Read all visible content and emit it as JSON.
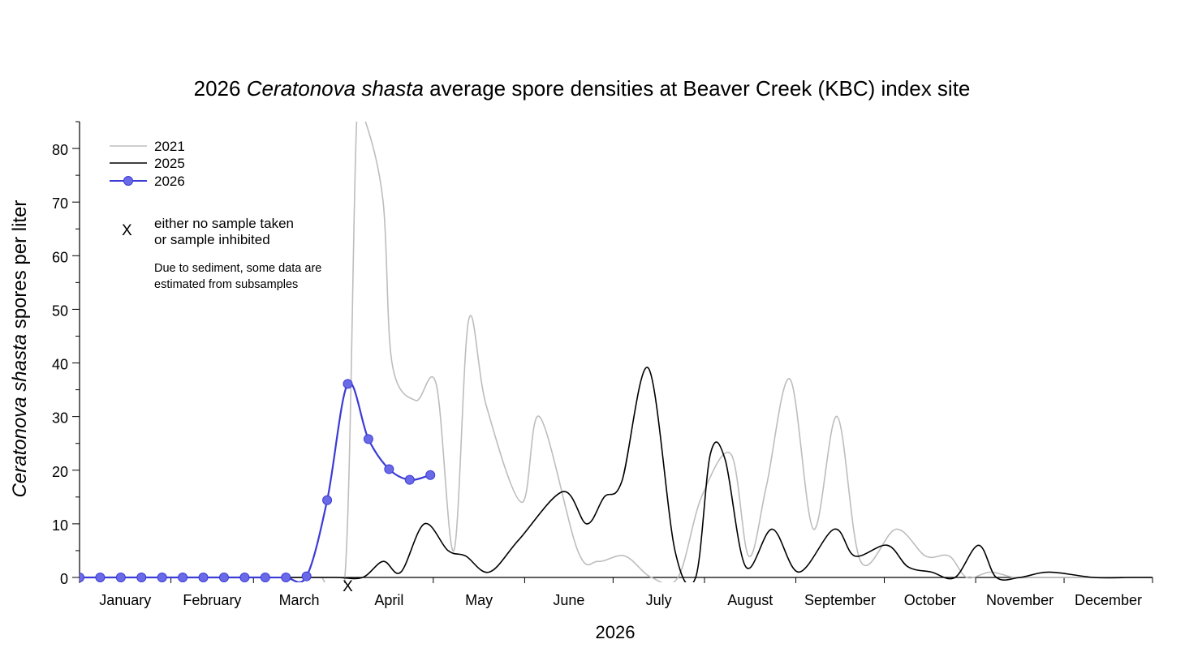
{
  "chart_data": {
    "type": "line",
    "title": {
      "prefix": "2026 ",
      "italic": "Ceratonova shasta",
      "suffix": " average spore densities at Beaver Creek (KBC) index site"
    },
    "ylabel": {
      "italic": "Ceratonova shasta",
      "suffix": " spores per liter"
    },
    "xlabel": "2026",
    "ylim": [
      0,
      85
    ],
    "yticks": [
      0,
      10,
      20,
      30,
      40,
      50,
      60,
      70,
      80
    ],
    "months": [
      "January",
      "February",
      "March",
      "April",
      "May",
      "June",
      "July",
      "August",
      "September",
      "October",
      "November",
      "December"
    ],
    "grid": false,
    "legend_placement": "top-left",
    "series": [
      {
        "name": "2021",
        "color": "#bdbdbd",
        "markers": false,
        "x": [
          1,
          15,
          29,
          46,
          60,
          74,
          78,
          83,
          91,
          95,
          98,
          104,
          107,
          115,
          122,
          128,
          133,
          139,
          151,
          157,
          170,
          177,
          186,
          195,
          204,
          212,
          222,
          228,
          234,
          242,
          250,
          258,
          266,
          278,
          288,
          296,
          302,
          310,
          318,
          326,
          340,
          354,
          365
        ],
        "y": [
          0,
          0,
          0,
          0,
          0,
          0,
          0,
          0,
          0,
          85,
          85,
          70,
          40,
          33,
          36,
          5,
          48,
          32,
          14,
          30,
          5,
          3,
          4,
          0,
          0,
          15,
          23,
          4,
          17,
          37,
          9,
          30,
          3,
          9,
          4,
          4,
          0,
          1,
          0,
          0,
          0,
          0,
          0
        ]
      },
      {
        "name": "2025",
        "color": "#000000",
        "markers": false,
        "x": [
          1,
          15,
          29,
          46,
          60,
          74,
          88,
          97,
          104,
          110,
          118,
          126,
          132,
          140,
          150,
          165,
          173,
          179,
          185,
          194,
          203,
          210,
          215,
          220,
          227,
          236,
          245,
          257,
          264,
          275,
          282,
          290,
          298,
          306,
          312,
          320,
          330,
          345,
          358,
          365
        ],
        "y": [
          0,
          0,
          0,
          0,
          0,
          0,
          0,
          0,
          3,
          1,
          10,
          5,
          4,
          1,
          7,
          16,
          10,
          15,
          18,
          39,
          5,
          0,
          23,
          22,
          2,
          9,
          1,
          9,
          4,
          6,
          2,
          1,
          0,
          6,
          0,
          0,
          1,
          0,
          0,
          0
        ]
      },
      {
        "name": "2026",
        "color": "#3b3bd6",
        "markers": true,
        "x": [
          1,
          8,
          15,
          22,
          29,
          36,
          43,
          50,
          57,
          64,
          71,
          78,
          85,
          92,
          99,
          106,
          113,
          120
        ],
        "y": [
          0,
          0,
          0,
          0,
          0,
          0,
          0,
          0,
          0,
          0,
          0,
          0.2,
          14.4,
          36.1,
          25.8,
          20.2,
          18.2,
          19.1
        ]
      }
    ],
    "no_sample_markers": {
      "symbol": "X",
      "x": [
        92
      ]
    },
    "legend": {
      "entries": [
        "2021",
        "2025",
        "2026"
      ],
      "x_marker_symbol": "X",
      "x_marker_text_line1": "either no sample taken",
      "x_marker_text_line2": "or sample inhibited",
      "note_line1": "Due to sediment, some data are",
      "note_line2": "estimated from subsamples"
    }
  }
}
